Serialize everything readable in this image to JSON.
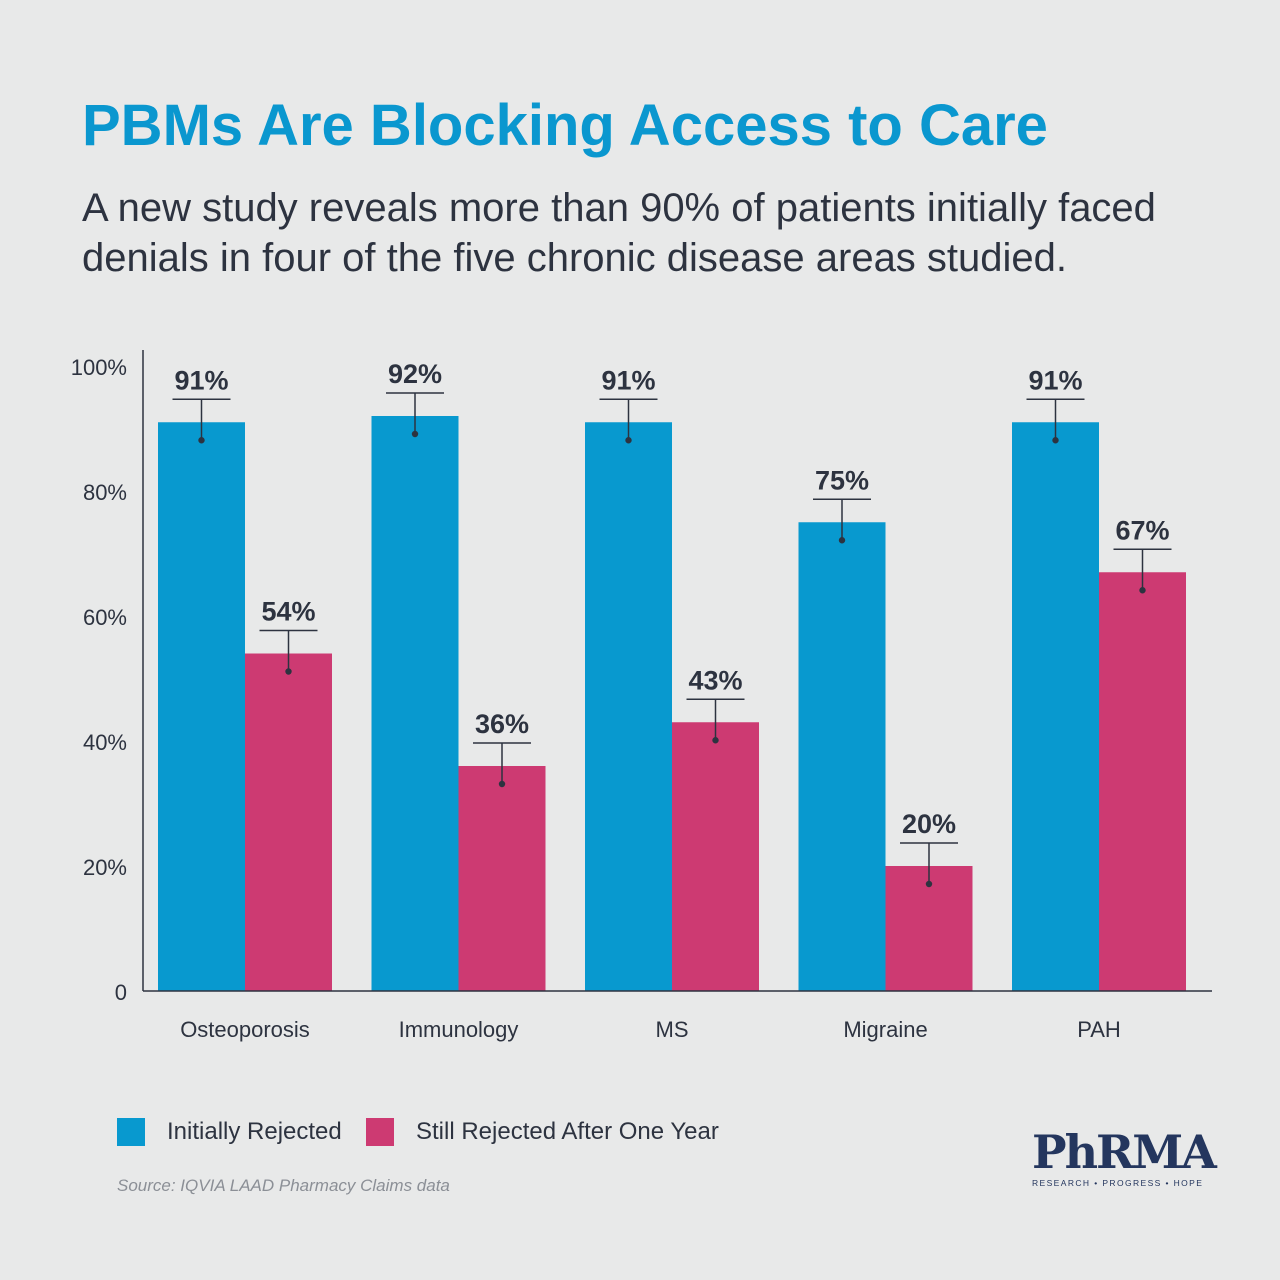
{
  "header": {
    "title": "PBMs Are Blocking Access to Care",
    "subtitle": "A new study reveals more than 90% of patients initially faced denials in four of the five chronic disease areas studied."
  },
  "colors": {
    "blue": "#0899cf",
    "pink": "#cd3a72",
    "axis": "#2d3340",
    "text": "#2d3340"
  },
  "chart_data": {
    "type": "bar",
    "categories": [
      "Osteoporosis",
      "Immunology",
      "MS",
      "Migraine",
      "PAH"
    ],
    "series": [
      {
        "name": "Initially Rejected",
        "values": [
          91,
          92,
          91,
          75,
          91
        ]
      },
      {
        "name": "Still Rejected After One Year",
        "values": [
          54,
          36,
          43,
          20,
          67
        ]
      }
    ],
    "data_labels": [
      [
        "91%",
        "92%",
        "91%",
        "75%",
        "91%"
      ],
      [
        "54%",
        "36%",
        "43%",
        "20%",
        "67%"
      ]
    ],
    "error_bars": true,
    "yticks": [
      {
        "value": 0,
        "label": "0"
      },
      {
        "value": 20,
        "label": "20%"
      },
      {
        "value": 40,
        "label": "40%"
      },
      {
        "value": 60,
        "label": "60%"
      },
      {
        "value": 80,
        "label": "80%"
      },
      {
        "value": 100,
        "label": "100%"
      }
    ],
    "ylim": [
      0,
      100
    ],
    "title": "PBMs Are Blocking Access to Care",
    "xlabel": "",
    "ylabel": "",
    "legend": "bottom-left"
  },
  "legend": {
    "items": [
      {
        "label": "Initially Rejected"
      },
      {
        "label": "Still Rejected After One Year"
      }
    ]
  },
  "source": "Source: IQVIA LAAD Pharmacy Claims data",
  "logo": {
    "word": "PhRMA",
    "tagline": "RESEARCH • PROGRESS • HOPE"
  }
}
